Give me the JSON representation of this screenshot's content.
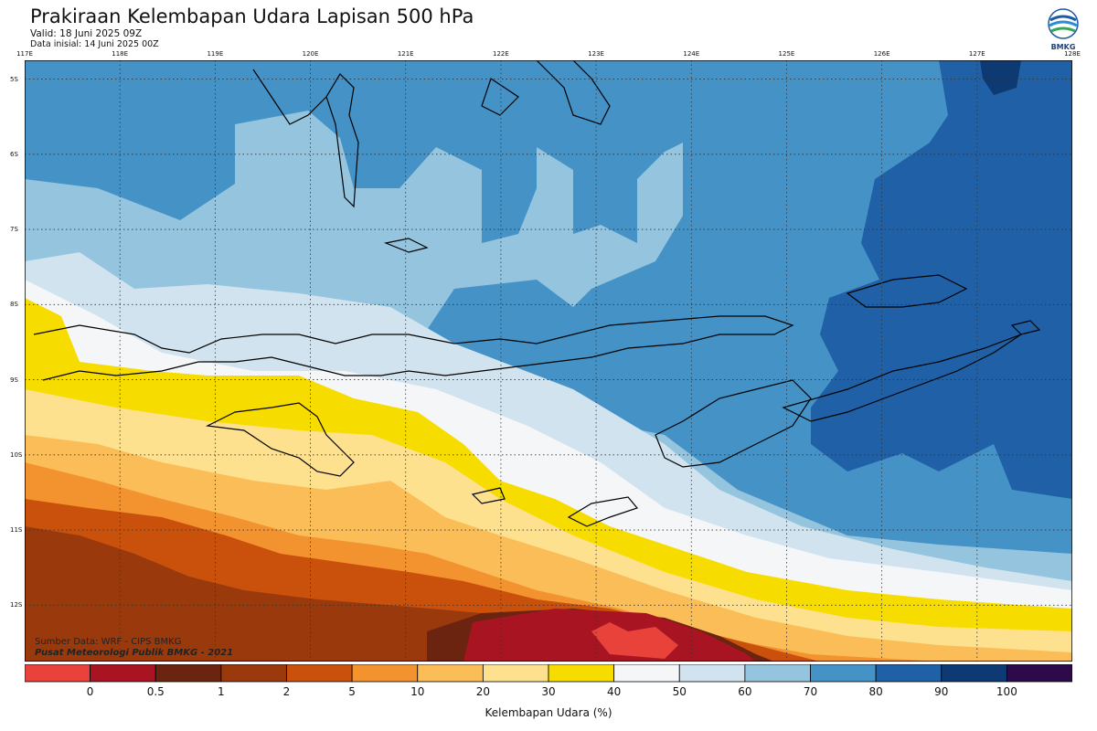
{
  "header": {
    "title": "Prakiraan Kelembapan Udara Lapisan 500 hPa",
    "valid": "Valid: 18 Juni 2025 09Z",
    "initial": "Data inisial: 14 Juni 2025 00Z"
  },
  "logo": {
    "text": "BMKG",
    "icon": "bmkg-logo-icon"
  },
  "map": {
    "lon_labels": [
      "117E",
      "118E",
      "119E",
      "120E",
      "121E",
      "122E",
      "123E",
      "124E",
      "125E",
      "126E",
      "127E",
      "128E"
    ],
    "lat_labels": [
      "5S",
      "6S",
      "7S",
      "8S",
      "9S",
      "10S",
      "11S",
      "12S"
    ],
    "lon_range": [
      117,
      128
    ],
    "lat_range": [
      -4.75,
      -12.75
    ],
    "gridlines": true
  },
  "credits": {
    "source": "Sumber Data: WRF - CIPS BMKG",
    "org": "Pusat Meteorologi Publik BMKG - 2021"
  },
  "colorbar": {
    "title": "Kelembapan Udara (%)",
    "labels": [
      "0",
      "0.5",
      "1",
      "2",
      "5",
      "10",
      "20",
      "30",
      "40",
      "50",
      "60",
      "70",
      "80",
      "90",
      "100"
    ],
    "colors": [
      "#e8423b",
      "#a81422",
      "#6b2410",
      "#9a3a0c",
      "#c9510c",
      "#f39330",
      "#fbbd57",
      "#fde18f",
      "#f7dc00",
      "#f5f6f8",
      "#d0e3ef",
      "#94c4de",
      "#4492c6",
      "#2060a6",
      "#0d3a72",
      "#2d0a4a"
    ]
  }
}
